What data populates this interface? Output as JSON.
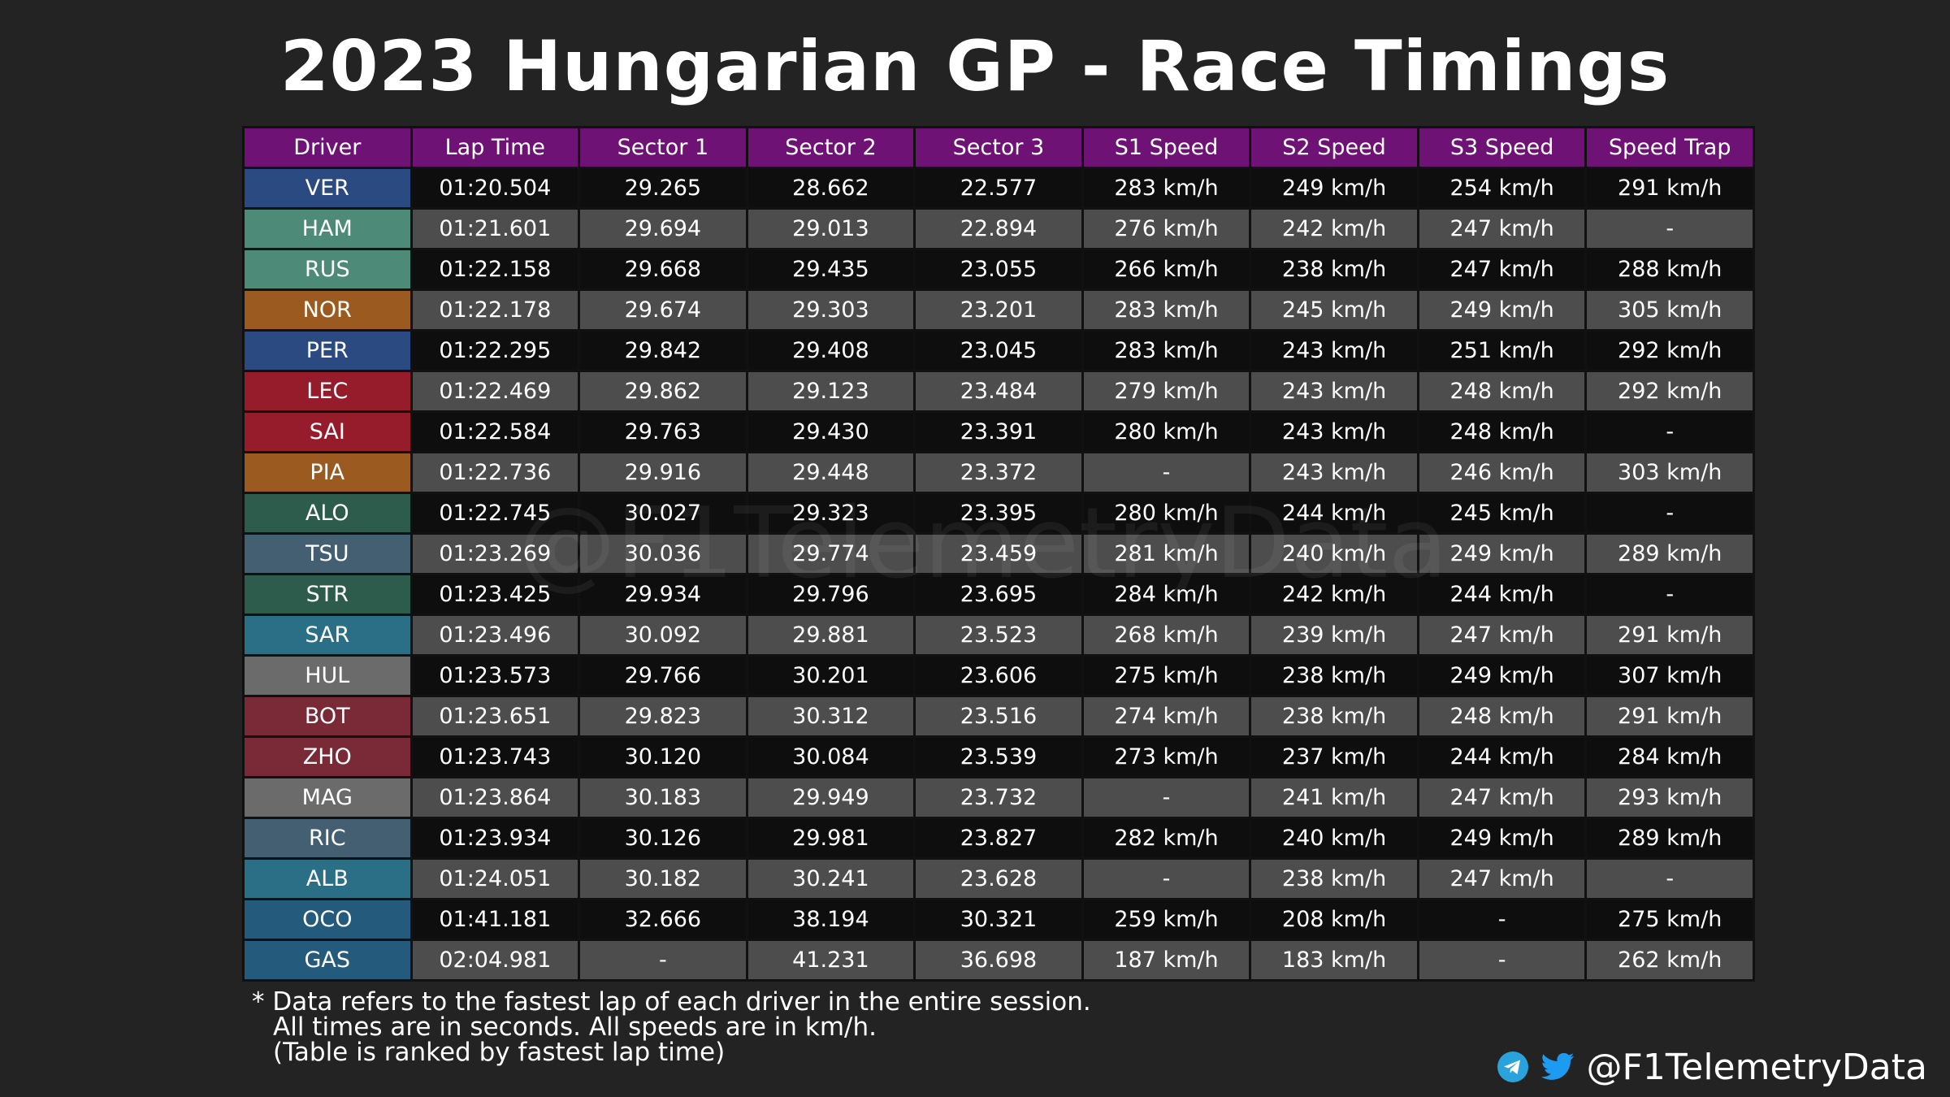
{
  "title": "2023 Hungarian GP - Race Timings",
  "watermark": "@F1TelemetryData",
  "colors": {
    "background": "#232323",
    "header": "#6f1276",
    "row_dark": "#0e0e0e",
    "row_light": "#4d4d4d",
    "border": "#111111",
    "telegram": "#2aa3dd",
    "twitter": "#1d9bf0"
  },
  "chart_data": {
    "type": "table",
    "columns": [
      "Driver",
      "Lap Time",
      "Sector 1",
      "Sector 2",
      "Sector 3",
      "S1 Speed",
      "S2 Speed",
      "S3 Speed",
      "Speed Trap"
    ],
    "rows": [
      {
        "driver": "VER",
        "team_color": "#2b4a82",
        "lap_time": "01:20.504",
        "s1": "29.265",
        "s2": "28.662",
        "s3": "22.577",
        "s1_speed": "283 km/h",
        "s2_speed": "249 km/h",
        "s3_speed": "254 km/h",
        "speed_trap": "291 km/h"
      },
      {
        "driver": "HAM",
        "team_color": "#4d8a78",
        "lap_time": "01:21.601",
        "s1": "29.694",
        "s2": "29.013",
        "s3": "22.894",
        "s1_speed": "276 km/h",
        "s2_speed": "242 km/h",
        "s3_speed": "247 km/h",
        "speed_trap": "-"
      },
      {
        "driver": "RUS",
        "team_color": "#4d8a78",
        "lap_time": "01:22.158",
        "s1": "29.668",
        "s2": "29.435",
        "s3": "23.055",
        "s1_speed": "266 km/h",
        "s2_speed": "238 km/h",
        "s3_speed": "247 km/h",
        "speed_trap": "288 km/h"
      },
      {
        "driver": "NOR",
        "team_color": "#9a5a20",
        "lap_time": "01:22.178",
        "s1": "29.674",
        "s2": "29.303",
        "s3": "23.201",
        "s1_speed": "283 km/h",
        "s2_speed": "245 km/h",
        "s3_speed": "249 km/h",
        "speed_trap": "305 km/h"
      },
      {
        "driver": "PER",
        "team_color": "#2b4a82",
        "lap_time": "01:22.295",
        "s1": "29.842",
        "s2": "29.408",
        "s3": "23.045",
        "s1_speed": "283 km/h",
        "s2_speed": "243 km/h",
        "s3_speed": "251 km/h",
        "speed_trap": "292 km/h"
      },
      {
        "driver": "LEC",
        "team_color": "#961c2c",
        "lap_time": "01:22.469",
        "s1": "29.862",
        "s2": "29.123",
        "s3": "23.484",
        "s1_speed": "279 km/h",
        "s2_speed": "243 km/h",
        "s3_speed": "248 km/h",
        "speed_trap": "292 km/h"
      },
      {
        "driver": "SAI",
        "team_color": "#961c2c",
        "lap_time": "01:22.584",
        "s1": "29.763",
        "s2": "29.430",
        "s3": "23.391",
        "s1_speed": "280 km/h",
        "s2_speed": "243 km/h",
        "s3_speed": "248 km/h",
        "speed_trap": "-"
      },
      {
        "driver": "PIA",
        "team_color": "#9a5a20",
        "lap_time": "01:22.736",
        "s1": "29.916",
        "s2": "29.448",
        "s3": "23.372",
        "s1_speed": "-",
        "s2_speed": "243 km/h",
        "s3_speed": "246 km/h",
        "speed_trap": "303 km/h"
      },
      {
        "driver": "ALO",
        "team_color": "#2d5c4c",
        "lap_time": "01:22.745",
        "s1": "30.027",
        "s2": "29.323",
        "s3": "23.395",
        "s1_speed": "280 km/h",
        "s2_speed": "244 km/h",
        "s3_speed": "245 km/h",
        "speed_trap": "-"
      },
      {
        "driver": "TSU",
        "team_color": "#445e72",
        "lap_time": "01:23.269",
        "s1": "30.036",
        "s2": "29.774",
        "s3": "23.459",
        "s1_speed": "281 km/h",
        "s2_speed": "240 km/h",
        "s3_speed": "249 km/h",
        "speed_trap": "289 km/h"
      },
      {
        "driver": "STR",
        "team_color": "#2d5c4c",
        "lap_time": "01:23.425",
        "s1": "29.934",
        "s2": "29.796",
        "s3": "23.695",
        "s1_speed": "284 km/h",
        "s2_speed": "242 km/h",
        "s3_speed": "244 km/h",
        "speed_trap": "-"
      },
      {
        "driver": "SAR",
        "team_color": "#2a6f86",
        "lap_time": "01:23.496",
        "s1": "30.092",
        "s2": "29.881",
        "s3": "23.523",
        "s1_speed": "268 km/h",
        "s2_speed": "239 km/h",
        "s3_speed": "247 km/h",
        "speed_trap": "291 km/h"
      },
      {
        "driver": "HUL",
        "team_color": "#6b6b6b",
        "lap_time": "01:23.573",
        "s1": "29.766",
        "s2": "30.201",
        "s3": "23.606",
        "s1_speed": "275 km/h",
        "s2_speed": "238 km/h",
        "s3_speed": "249 km/h",
        "speed_trap": "307 km/h"
      },
      {
        "driver": "BOT",
        "team_color": "#7a2a36",
        "lap_time": "01:23.651",
        "s1": "29.823",
        "s2": "30.312",
        "s3": "23.516",
        "s1_speed": "274 km/h",
        "s2_speed": "238 km/h",
        "s3_speed": "248 km/h",
        "speed_trap": "291 km/h"
      },
      {
        "driver": "ZHO",
        "team_color": "#7a2a36",
        "lap_time": "01:23.743",
        "s1": "30.120",
        "s2": "30.084",
        "s3": "23.539",
        "s1_speed": "273 km/h",
        "s2_speed": "237 km/h",
        "s3_speed": "244 km/h",
        "speed_trap": "284 km/h"
      },
      {
        "driver": "MAG",
        "team_color": "#6b6b6b",
        "lap_time": "01:23.864",
        "s1": "30.183",
        "s2": "29.949",
        "s3": "23.732",
        "s1_speed": "-",
        "s2_speed": "241 km/h",
        "s3_speed": "247 km/h",
        "speed_trap": "293 km/h"
      },
      {
        "driver": "RIC",
        "team_color": "#445e72",
        "lap_time": "01:23.934",
        "s1": "30.126",
        "s2": "29.981",
        "s3": "23.827",
        "s1_speed": "282 km/h",
        "s2_speed": "240 km/h",
        "s3_speed": "249 km/h",
        "speed_trap": "289 km/h"
      },
      {
        "driver": "ALB",
        "team_color": "#2a6f86",
        "lap_time": "01:24.051",
        "s1": "30.182",
        "s2": "30.241",
        "s3": "23.628",
        "s1_speed": "-",
        "s2_speed": "238 km/h",
        "s3_speed": "247 km/h",
        "speed_trap": "-"
      },
      {
        "driver": "OCO",
        "team_color": "#245a7c",
        "lap_time": "01:41.181",
        "s1": "32.666",
        "s2": "38.194",
        "s3": "30.321",
        "s1_speed": "259 km/h",
        "s2_speed": "208 km/h",
        "s3_speed": "-",
        "speed_trap": "275 km/h"
      },
      {
        "driver": "GAS",
        "team_color": "#245a7c",
        "lap_time": "02:04.981",
        "s1": "-",
        "s2": "41.231",
        "s3": "36.698",
        "s1_speed": "187 km/h",
        "s2_speed": "183 km/h",
        "s3_speed": "-",
        "speed_trap": "262 km/h"
      }
    ]
  },
  "footnote": {
    "line1": "* Data refers to the fastest lap of each driver in the entire session.",
    "line2": "All times are in seconds. All speeds are in km/h.",
    "line3": "(Table is ranked by fastest lap time)"
  },
  "social": {
    "handle": "@F1TelemetryData",
    "icons": [
      "telegram-icon",
      "twitter-icon"
    ]
  }
}
